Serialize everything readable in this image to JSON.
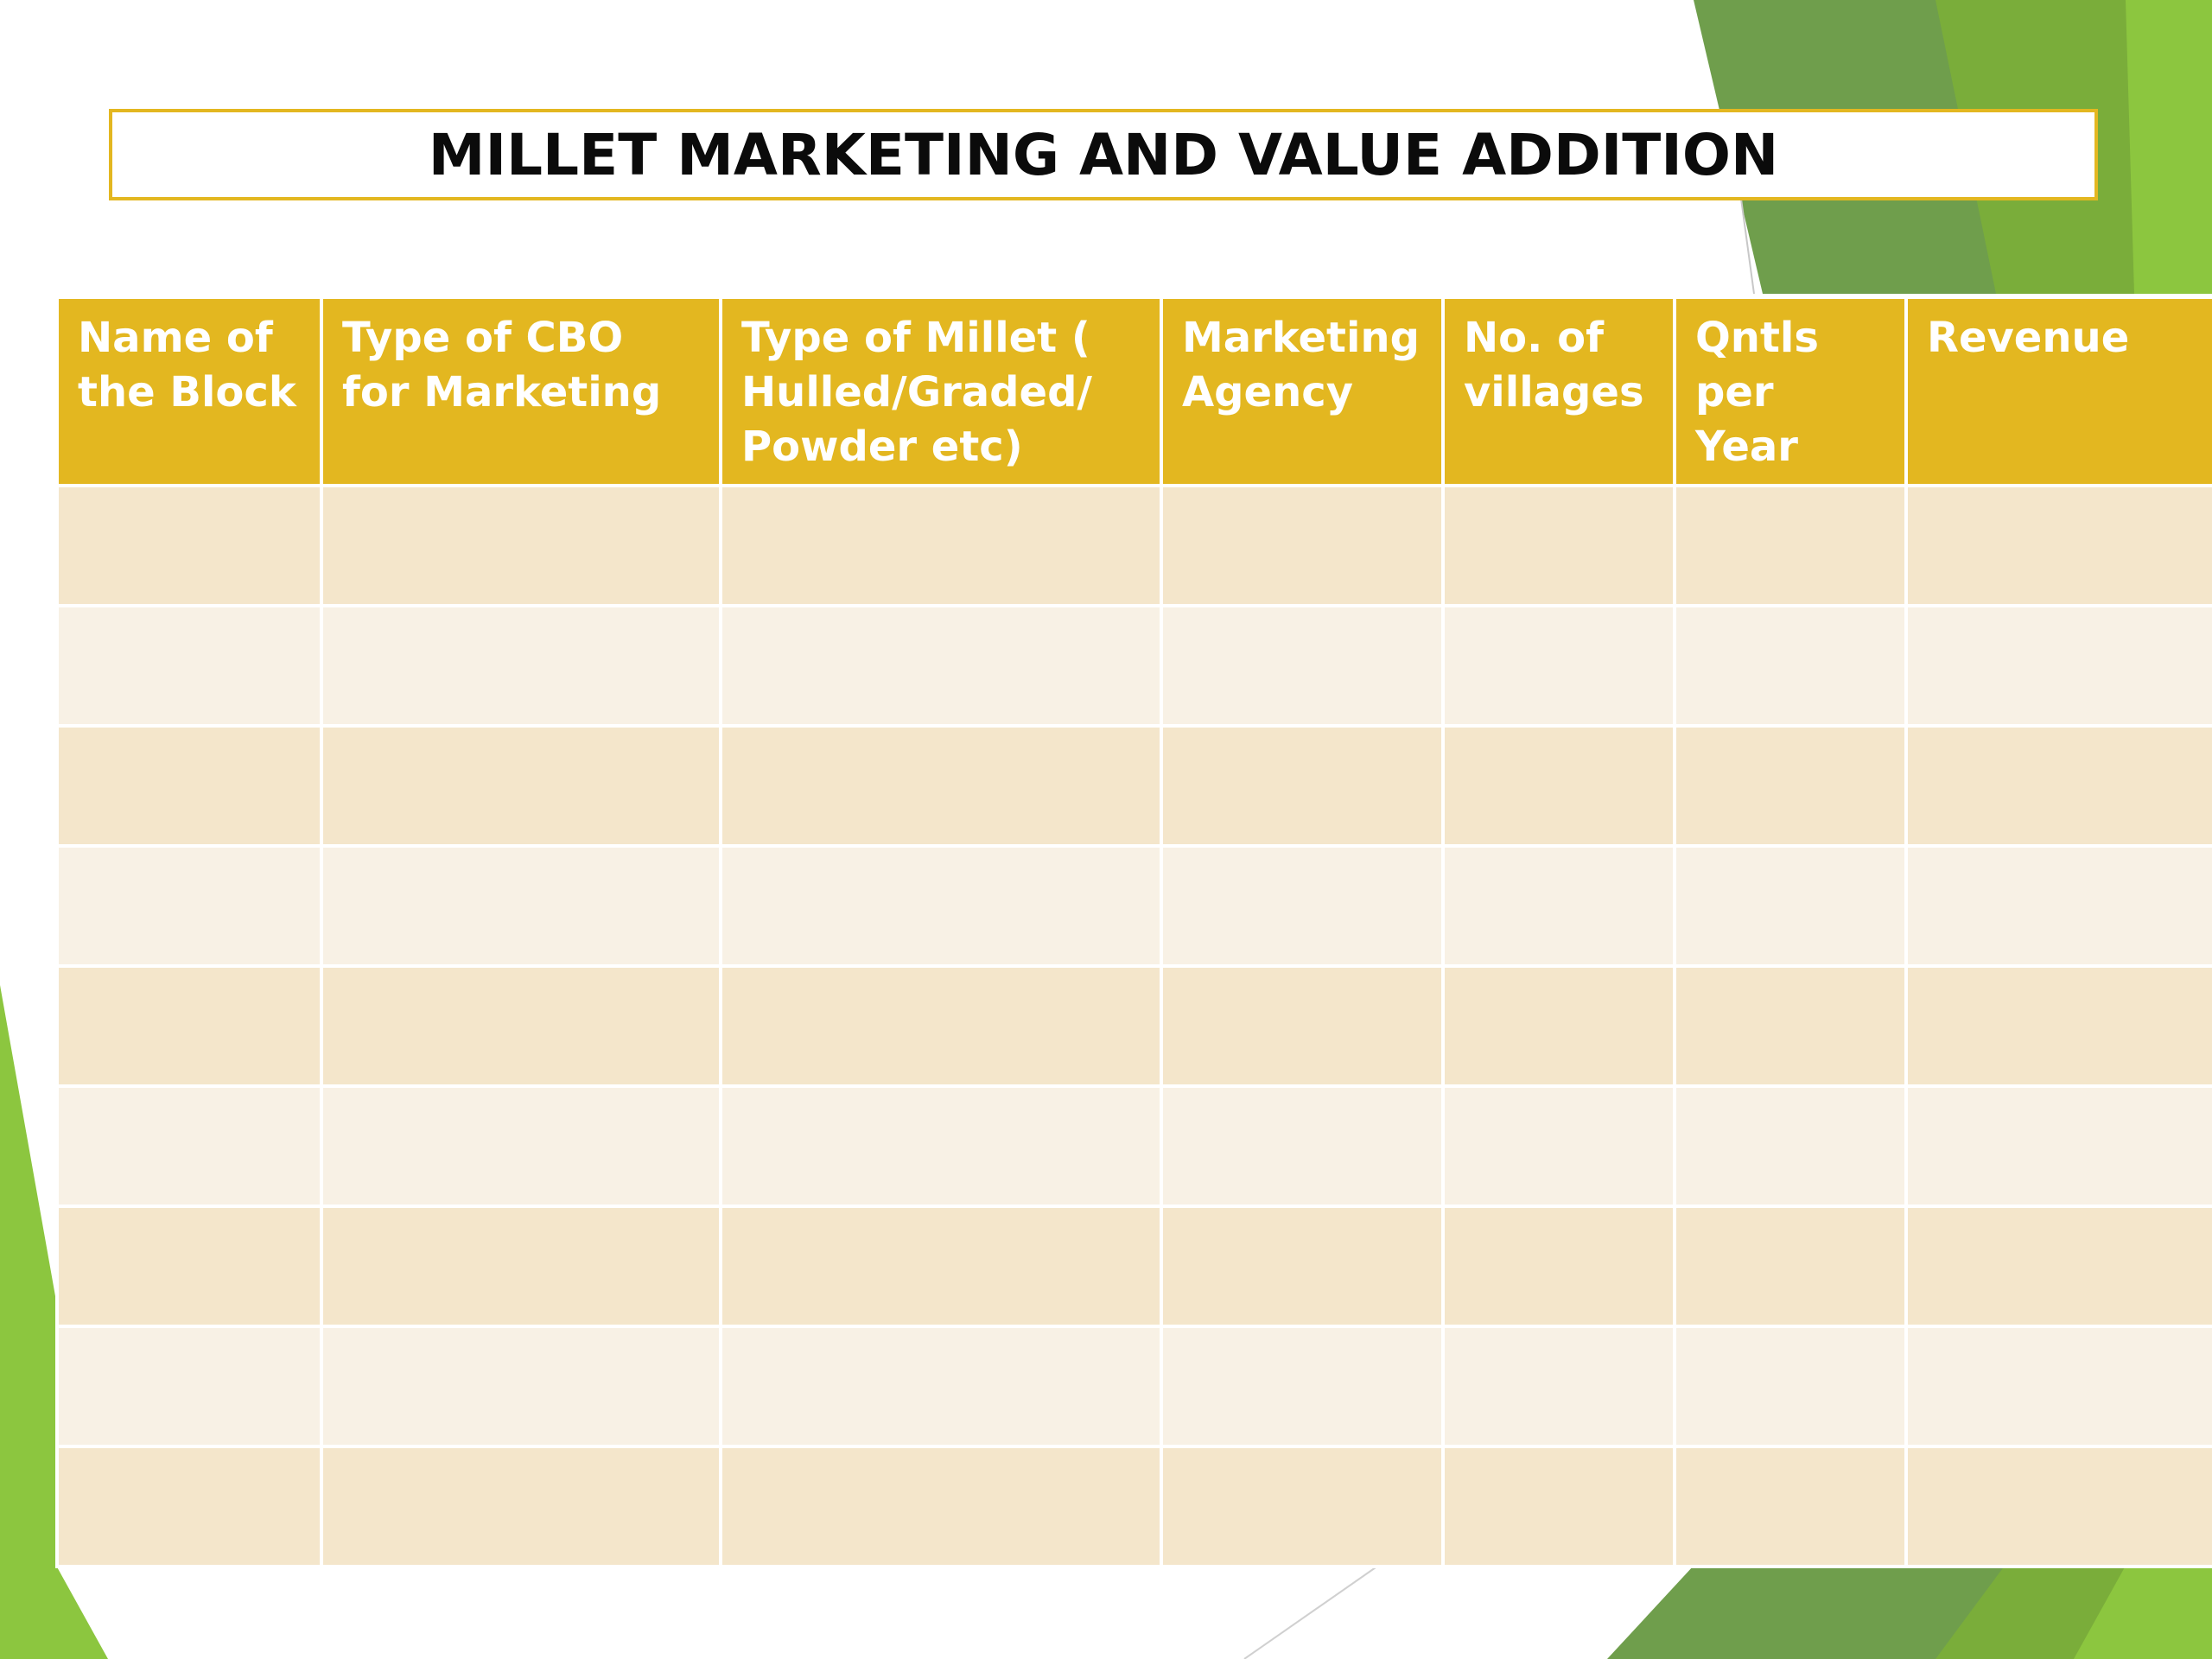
{
  "slide": {
    "title": "MILLET MARKETING AND VALUE ADDITION"
  },
  "table": {
    "headers": [
      "Name  of the Block",
      "Type of CBO for Marketing",
      "Type of Millet ( Hulled/Graded/ Powder etc)",
      "Marketing Agency",
      "No. of villages",
      "Qntls per Year",
      "Revenue"
    ],
    "rows": [
      [
        "",
        "",
        "",
        "",
        "",
        "",
        ""
      ],
      [
        "",
        "",
        "",
        "",
        "",
        "",
        ""
      ],
      [
        "",
        "",
        "",
        "",
        "",
        "",
        ""
      ],
      [
        "",
        "",
        "",
        "",
        "",
        "",
        ""
      ],
      [
        "",
        "",
        "",
        "",
        "",
        "",
        ""
      ],
      [
        "",
        "",
        "",
        "",
        "",
        "",
        ""
      ],
      [
        "",
        "",
        "",
        "",
        "",
        "",
        ""
      ],
      [
        "",
        "",
        "",
        "",
        "",
        "",
        ""
      ],
      [
        "",
        "",
        "",
        "",
        "",
        "",
        ""
      ]
    ]
  },
  "theme": {
    "header_color": "#e3b720",
    "row_odd_color": "#f4e6cb",
    "row_even_color": "#f8f1e5",
    "accent_green": "#7fb539"
  }
}
